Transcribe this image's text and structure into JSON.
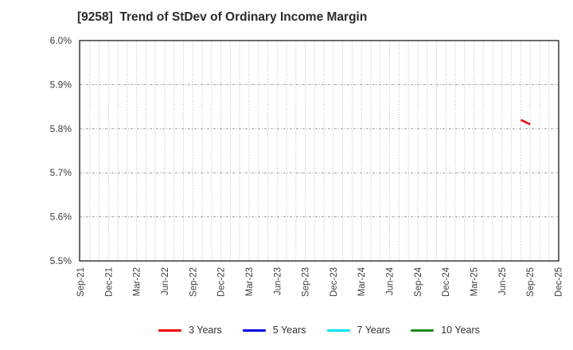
{
  "title": "[9258]  Trend of StDev of Ordinary Income Margin",
  "chart_data": {
    "type": "line",
    "title": "[9258]  Trend of StDev of Ordinary Income Margin",
    "xlabel": "",
    "ylabel": "",
    "ylim": [
      5.5,
      6.0
    ],
    "grid": true,
    "legend_position": "bottom",
    "yticks": [
      {
        "label": "5.5%",
        "value": 5.5
      },
      {
        "label": "5.6%",
        "value": 5.6
      },
      {
        "label": "5.7%",
        "value": 5.7
      },
      {
        "label": "5.8%",
        "value": 5.8
      },
      {
        "label": "5.9%",
        "value": 5.9
      },
      {
        "label": "6.0%",
        "value": 6.0
      }
    ],
    "xticks": [
      "Sep-21",
      "Dec-21",
      "Mar-22",
      "Jun-22",
      "Sep-22",
      "Dec-22",
      "Mar-23",
      "Jun-23",
      "Sep-23",
      "Dec-23",
      "Mar-24",
      "Jun-24",
      "Sep-24",
      "Dec-24",
      "Mar-25",
      "Jun-25",
      "Sep-25",
      "Dec-25"
    ],
    "series": [
      {
        "name": "3 Years",
        "color": "#f10000",
        "points": [
          {
            "x": "Aug-25",
            "y": 5.82
          },
          {
            "x": "Sep-25",
            "y": 5.81
          }
        ]
      },
      {
        "name": "5 Years",
        "color": "#0000e6",
        "points": []
      },
      {
        "name": "7 Years",
        "color": "#00e5ee",
        "points": []
      },
      {
        "name": "10 Years",
        "color": "#1a8a1a",
        "points": []
      }
    ]
  }
}
